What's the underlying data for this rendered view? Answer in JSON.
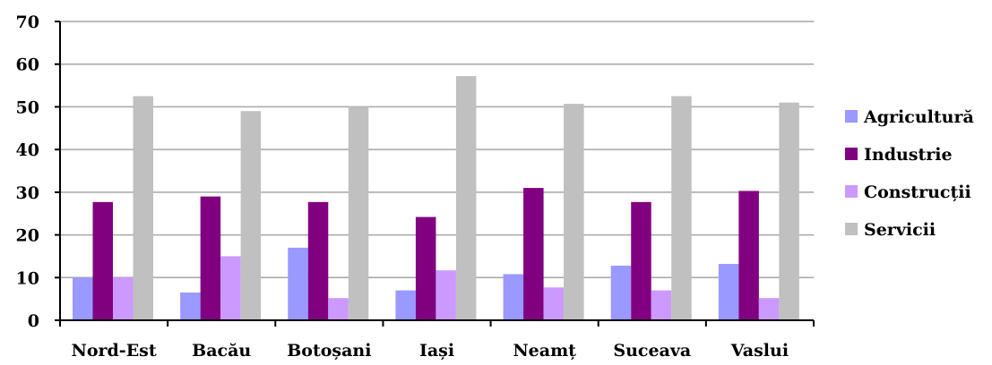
{
  "chart_data": {
    "type": "bar",
    "title": "",
    "xlabel": "",
    "ylabel": "",
    "ylim": [
      0,
      70
    ],
    "yticks": [
      0,
      10,
      20,
      30,
      40,
      50,
      60,
      70
    ],
    "grid": true,
    "legend_position": "right",
    "categories": [
      "Nord-Est",
      "Bacău",
      "Botoșani",
      "Iași",
      "Neamț",
      "Suceava",
      "Vaslui"
    ],
    "series": [
      {
        "name": "Agricultură",
        "color": "#9999ff",
        "values": [
          10,
          6.5,
          17,
          7,
          10.8,
          12.8,
          13.2
        ]
      },
      {
        "name": "Industrie",
        "color": "#800080",
        "values": [
          27.7,
          29,
          27.7,
          24.2,
          31,
          27.7,
          30.3
        ]
      },
      {
        "name": "Construcții",
        "color": "#cc99ff",
        "values": [
          10,
          15,
          5.2,
          11.7,
          7.7,
          7,
          5.2
        ]
      },
      {
        "name": "Servicii",
        "color": "#c0c0c0",
        "values": [
          52.5,
          49,
          50,
          57.2,
          50.7,
          52.5,
          51
        ]
      }
    ]
  }
}
